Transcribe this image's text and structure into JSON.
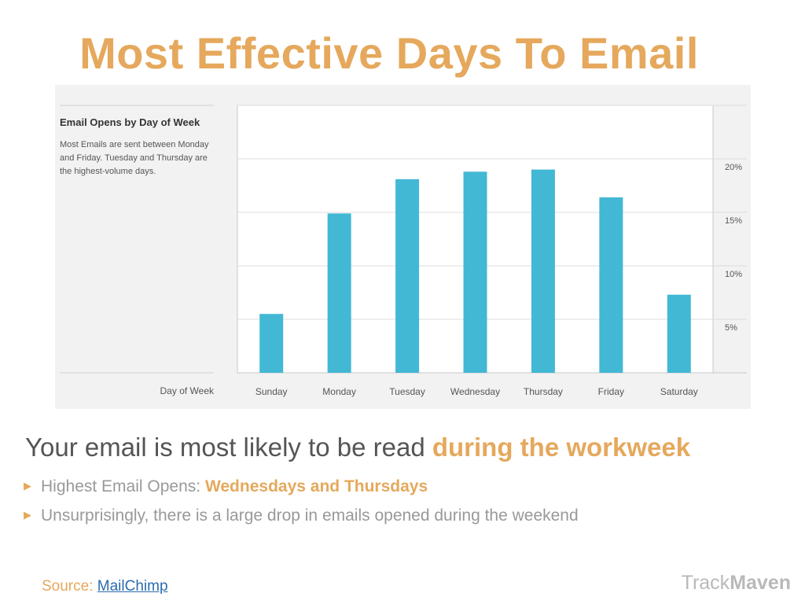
{
  "slide": {
    "title": "Most Effective Days To Email",
    "headline_prefix": "Your email is most likely to be read ",
    "headline_accent": "during the workweek",
    "bullets": [
      {
        "prefix": "Highest Email Opens: ",
        "accent": "Wednesdays and Thursdays"
      },
      {
        "prefix": "Unsurprisingly, there is a large drop  in emails opened during the weekend",
        "accent": ""
      }
    ],
    "source_label": "Source: ",
    "source_link": "MailChimp",
    "logo_part1": "Track",
    "logo_part2": "Maven"
  },
  "chart_data": {
    "type": "bar",
    "title": "Email Opens by Day of Week",
    "description": "Most Emails are sent between Monday and Friday. Tuesday and Thursday are the highest-volume days.",
    "xlabel": "Day of Week",
    "ylabel": "",
    "categories": [
      "Sunday",
      "Monday",
      "Tuesday",
      "Wednesday",
      "Thursday",
      "Friday",
      "Saturday"
    ],
    "values": [
      5.5,
      14.9,
      18.1,
      18.8,
      19.0,
      16.4,
      7.3
    ],
    "ylim": [
      0,
      25
    ],
    "yticks": [
      5,
      10,
      15,
      20
    ],
    "ytick_labels": [
      "5%",
      "10%",
      "15%",
      "20%"
    ],
    "y_axis_position": "right",
    "grid": true,
    "bar_color": "#42b8d5"
  }
}
